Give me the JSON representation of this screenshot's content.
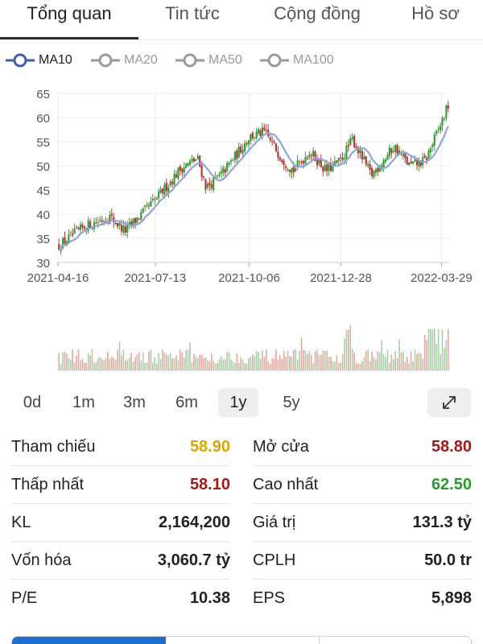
{
  "tabs": [
    {
      "label": "Tổng quan",
      "active": true
    },
    {
      "label": "Tin tức",
      "active": false
    },
    {
      "label": "Cộng đồng",
      "active": false
    },
    {
      "label": "Hồ sơ",
      "active": false
    }
  ],
  "legend": [
    {
      "label": "MA10",
      "active": true,
      "color": "#3f5fa8"
    },
    {
      "label": "MA20",
      "active": false,
      "color": "#9a9a9a"
    },
    {
      "label": "MA50",
      "active": false,
      "color": "#9a9a9a"
    },
    {
      "label": "MA100",
      "active": false,
      "color": "#9a9a9a"
    }
  ],
  "chart_data": {
    "type": "candlestick",
    "y_ticks": [
      "65",
      "60",
      "55",
      "50",
      "45",
      "40",
      "35",
      "30"
    ],
    "ylim": [
      30,
      65
    ],
    "x_ticks": [
      "2021-04-16",
      "2021-07-13",
      "2021-10-06",
      "2021-12-28",
      "2022-03-29"
    ],
    "up_color": "#3a9a3a",
    "down_color": "#b03a3a",
    "ma_color": "#8fa6d8",
    "grid": true,
    "price_path": [
      [
        "2021-04-16",
        33.5
      ],
      [
        "2021-05-10",
        37.5
      ],
      [
        "2021-06-01",
        39.5
      ],
      [
        "2021-06-15",
        36.5
      ],
      [
        "2021-07-13",
        43.0
      ],
      [
        "2021-08-05",
        49.5
      ],
      [
        "2021-08-20",
        51.5
      ],
      [
        "2021-08-28",
        45.5
      ],
      [
        "2021-09-10",
        48.0
      ],
      [
        "2021-09-25",
        52.5
      ],
      [
        "2021-10-06",
        56.0
      ],
      [
        "2021-10-20",
        57.0
      ],
      [
        "2021-11-05",
        51.5
      ],
      [
        "2021-11-15",
        49.0
      ],
      [
        "2021-11-30",
        53.0
      ],
      [
        "2021-12-15",
        49.0
      ],
      [
        "2021-12-28",
        51.0
      ],
      [
        "2022-01-08",
        55.5
      ],
      [
        "2022-01-25",
        48.0
      ],
      [
        "2022-02-15",
        54.0
      ],
      [
        "2022-03-01",
        50.0
      ],
      [
        "2022-03-15",
        51.0
      ],
      [
        "2022-03-29",
        58.5
      ],
      [
        "2022-04-05",
        62.5
      ]
    ],
    "volume_bars": 200
  },
  "ranges": [
    {
      "label": "0d",
      "active": false
    },
    {
      "label": "1m",
      "active": false
    },
    {
      "label": "3m",
      "active": false
    },
    {
      "label": "6m",
      "active": false
    },
    {
      "label": "1y",
      "active": true
    },
    {
      "label": "5y",
      "active": false
    }
  ],
  "expand_icon": "expand-arrows-icon",
  "stats": [
    {
      "left": {
        "label": "Tham chiếu",
        "value": "58.90",
        "color": "#d9a800"
      },
      "right": {
        "label": "Mở cửa",
        "value": "58.80",
        "color": "#a11a1a"
      }
    },
    {
      "left": {
        "label": "Thấp nhất",
        "value": "58.10",
        "color": "#a11a1a"
      },
      "right": {
        "label": "Cao nhất",
        "value": "62.50",
        "color": "#2a9a2a"
      }
    },
    {
      "left": {
        "label": "KL",
        "value": "2,164,200",
        "color": "#222222"
      },
      "right": {
        "label": "Giá trị",
        "value": "131.3 tỷ",
        "color": "#222222"
      }
    },
    {
      "left": {
        "label": "Vốn hóa",
        "value": "3,060.7 tỷ",
        "color": "#222222"
      },
      "right": {
        "label": "CPLH",
        "value": "50.0 tr",
        "color": "#222222"
      }
    },
    {
      "left": {
        "label": "P/E",
        "value": "10.38",
        "color": "#222222"
      },
      "right": {
        "label": "EPS",
        "value": "5,898",
        "color": "#222222"
      }
    }
  ]
}
